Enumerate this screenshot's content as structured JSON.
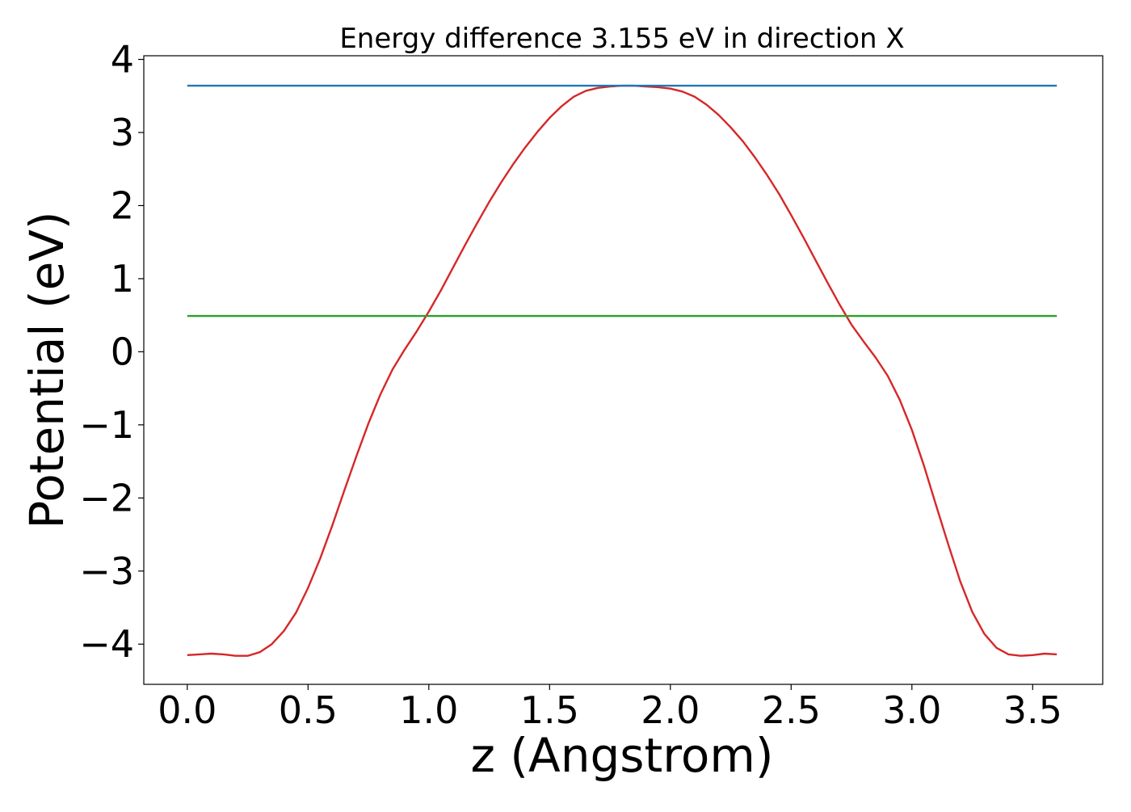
{
  "chart_data": {
    "type": "line",
    "title": "Energy difference 3.155 eV in direction X",
    "xlabel": "z (Angstrom)",
    "ylabel": "Potential (eV)",
    "xlim": [
      -0.18,
      3.79
    ],
    "ylim": [
      -4.55,
      4.05
    ],
    "grid": false,
    "x_ticks": [
      0.0,
      0.5,
      1.0,
      1.5,
      2.0,
      2.5,
      3.0,
      3.5
    ],
    "x_tick_labels": [
      "0.0",
      "0.5",
      "1.0",
      "1.5",
      "2.0",
      "2.5",
      "3.0",
      "3.5"
    ],
    "y_ticks": [
      -4,
      -3,
      -2,
      -1,
      0,
      1,
      2,
      3,
      4
    ],
    "y_tick_labels": [
      "−4",
      "−3",
      "−2",
      "−1",
      "0",
      "1",
      "2",
      "3",
      "4"
    ],
    "series": [
      {
        "color": "#d62728",
        "x": [
          0.0,
          0.05,
          0.1,
          0.15,
          0.2,
          0.25,
          0.3,
          0.35,
          0.4,
          0.45,
          0.5,
          0.55,
          0.6,
          0.65,
          0.7,
          0.75,
          0.8,
          0.85,
          0.9,
          0.95,
          1.0,
          1.05,
          1.1,
          1.15,
          1.2,
          1.25,
          1.3,
          1.35,
          1.4,
          1.45,
          1.5,
          1.55,
          1.6,
          1.65,
          1.7,
          1.75,
          1.8,
          1.85,
          1.9,
          1.95,
          2.0,
          2.05,
          2.1,
          2.15,
          2.2,
          2.25,
          2.3,
          2.35,
          2.4,
          2.45,
          2.5,
          2.55,
          2.6,
          2.65,
          2.7,
          2.75,
          2.8,
          2.85,
          2.9,
          2.95,
          3.0,
          3.05,
          3.1,
          3.15,
          3.2,
          3.25,
          3.3,
          3.35,
          3.4,
          3.45,
          3.5,
          3.55,
          3.6
        ],
        "y": [
          -4.15,
          -4.14,
          -4.13,
          -4.14,
          -4.16,
          -4.16,
          -4.11,
          -4.0,
          -3.82,
          -3.57,
          -3.23,
          -2.83,
          -2.38,
          -1.9,
          -1.43,
          -0.98,
          -0.58,
          -0.24,
          0.03,
          0.28,
          0.55,
          0.84,
          1.15,
          1.46,
          1.76,
          2.05,
          2.32,
          2.57,
          2.8,
          3.01,
          3.2,
          3.36,
          3.49,
          3.57,
          3.61,
          3.63,
          3.64,
          3.64,
          3.63,
          3.62,
          3.6,
          3.56,
          3.49,
          3.38,
          3.24,
          3.07,
          2.88,
          2.66,
          2.42,
          2.16,
          1.87,
          1.57,
          1.26,
          0.95,
          0.65,
          0.37,
          0.14,
          -0.08,
          -0.33,
          -0.66,
          -1.07,
          -1.56,
          -2.1,
          -2.63,
          -3.14,
          -3.56,
          -3.86,
          -4.05,
          -4.14,
          -4.16,
          -4.15,
          -4.13,
          -4.14
        ]
      },
      {
        "color": "#1f77b4",
        "x": [
          0.0,
          3.6
        ],
        "y": [
          3.64,
          3.64
        ]
      },
      {
        "color": "#2ca02c",
        "x": [
          0.0,
          3.6
        ],
        "y": [
          0.49,
          0.49
        ]
      }
    ]
  }
}
